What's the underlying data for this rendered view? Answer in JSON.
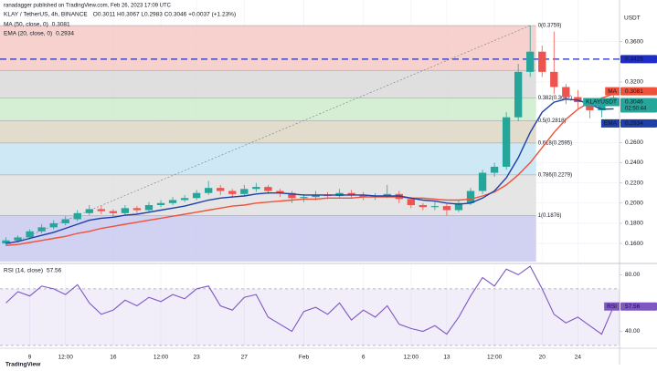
{
  "chart_data": {
    "type": "candlestick",
    "publisher": "ranadagger published on TradingView.com, Feb 26, 2023 17:09 UTC",
    "title": "KLAY / TetherUS, 4h, BINANCE",
    "ohlc_legend": "O0.3011 H0.3067 L0.2983 C0.3046 +0.0037 (+1.23%)",
    "currency": "USDT",
    "grid": true,
    "up_color": "#26a69a",
    "down_color": "#ef5350",
    "categories": [
      null,
      null,
      "9",
      null,
      null,
      "12:00",
      null,
      null,
      null,
      "16",
      null,
      null,
      null,
      "12:00",
      null,
      null,
      "23",
      null,
      null,
      null,
      "27",
      null,
      null,
      null,
      null,
      "Feb",
      null,
      null,
      null,
      null,
      "6",
      null,
      null,
      null,
      "12:00",
      null,
      null,
      "13",
      null,
      null,
      null,
      "12:00",
      null,
      null,
      null,
      "20",
      null,
      null,
      "24",
      null,
      null,
      null
    ],
    "open": [
      0.16,
      0.163,
      0.166,
      0.172,
      0.176,
      0.18,
      0.184,
      0.19,
      0.194,
      0.192,
      0.19,
      0.195,
      0.193,
      0.198,
      0.2,
      0.203,
      0.205,
      0.21,
      0.215,
      0.212,
      0.209,
      0.214,
      0.216,
      0.212,
      0.21,
      0.205,
      0.206,
      0.208,
      0.207,
      0.21,
      0.208,
      0.206,
      0.207,
      0.209,
      0.204,
      0.198,
      0.196,
      0.197,
      0.193,
      0.2,
      0.212,
      0.23,
      0.236,
      0.285,
      0.33,
      0.35,
      0.33,
      0.315,
      0.305,
      0.3,
      0.292,
      0.3011
    ],
    "high": [
      0.166,
      0.168,
      0.174,
      0.179,
      0.183,
      0.187,
      0.193,
      0.198,
      0.197,
      0.194,
      0.198,
      0.197,
      0.201,
      0.203,
      0.206,
      0.208,
      0.213,
      0.222,
      0.218,
      0.214,
      0.218,
      0.22,
      0.218,
      0.214,
      0.212,
      0.209,
      0.212,
      0.211,
      0.214,
      0.213,
      0.211,
      0.21,
      0.218,
      0.212,
      0.206,
      0.2,
      0.201,
      0.199,
      0.203,
      0.215,
      0.233,
      0.24,
      0.29,
      0.338,
      0.3759,
      0.356,
      0.37,
      0.318,
      0.312,
      0.304,
      0.305,
      0.3067
    ],
    "low": [
      0.158,
      0.161,
      0.164,
      0.17,
      0.174,
      0.178,
      0.182,
      0.188,
      0.189,
      0.186,
      0.188,
      0.19,
      0.191,
      0.196,
      0.198,
      0.201,
      0.203,
      0.208,
      0.208,
      0.205,
      0.207,
      0.211,
      0.209,
      0.206,
      0.2,
      0.201,
      0.203,
      0.204,
      0.205,
      0.205,
      0.203,
      0.203,
      0.205,
      0.2,
      0.195,
      0.193,
      0.193,
      0.1876,
      0.191,
      0.198,
      0.209,
      0.226,
      0.233,
      0.281,
      0.325,
      0.325,
      0.308,
      0.298,
      0.294,
      0.284,
      0.285,
      0.2983
    ],
    "close": [
      0.163,
      0.166,
      0.172,
      0.176,
      0.18,
      0.184,
      0.19,
      0.194,
      0.192,
      0.19,
      0.195,
      0.193,
      0.198,
      0.2,
      0.203,
      0.205,
      0.21,
      0.215,
      0.212,
      0.209,
      0.214,
      0.216,
      0.212,
      0.21,
      0.205,
      0.206,
      0.208,
      0.207,
      0.21,
      0.208,
      0.206,
      0.207,
      0.209,
      0.204,
      0.198,
      0.196,
      0.197,
      0.193,
      0.2,
      0.212,
      0.23,
      0.236,
      0.285,
      0.33,
      0.35,
      0.33,
      0.315,
      0.305,
      0.3,
      0.292,
      0.3011,
      0.3046
    ],
    "ylim": [
      0.142,
      0.394
    ],
    "yticks": [
      {
        "value": 0.16,
        "label": "0.1600"
      },
      {
        "value": 0.18,
        "label": "0.1800"
      },
      {
        "value": 0.2,
        "label": "0.2000"
      },
      {
        "value": 0.22,
        "label": "0.2200"
      },
      {
        "value": 0.24,
        "label": "0.2400"
      },
      {
        "value": 0.26,
        "label": "0.2600"
      },
      {
        "value": 0.28,
        "label": "0.2800"
      },
      {
        "value": 0.32,
        "label": "0.3200"
      },
      {
        "value": 0.36,
        "label": "0.3600"
      }
    ],
    "series": [
      {
        "name": "MA (50, close, 0)",
        "tag": "MA",
        "value_label": "0.3081",
        "color": "#f0513a",
        "values": [
          0.158,
          0.159,
          0.161,
          0.163,
          0.165,
          0.167,
          0.17,
          0.172,
          0.175,
          0.177,
          0.179,
          0.181,
          0.183,
          0.185,
          0.187,
          0.189,
          0.191,
          0.193,
          0.195,
          0.197,
          0.198,
          0.2,
          0.201,
          0.202,
          0.203,
          0.204,
          0.204,
          0.205,
          0.205,
          0.205,
          0.206,
          0.206,
          0.206,
          0.206,
          0.205,
          0.205,
          0.204,
          0.203,
          0.203,
          0.204,
          0.207,
          0.211,
          0.218,
          0.228,
          0.24,
          0.255,
          0.27,
          0.283,
          0.293,
          0.3,
          0.304,
          0.3081
        ]
      },
      {
        "name": "EMA (20, close, 0)",
        "tag": "EMA",
        "value_label": "0.2934",
        "color": "#1e3fa8",
        "values": [
          0.16,
          0.162,
          0.165,
          0.168,
          0.171,
          0.175,
          0.179,
          0.183,
          0.185,
          0.186,
          0.188,
          0.189,
          0.191,
          0.193,
          0.195,
          0.197,
          0.2,
          0.203,
          0.205,
          0.206,
          0.207,
          0.209,
          0.21,
          0.21,
          0.209,
          0.208,
          0.208,
          0.208,
          0.208,
          0.208,
          0.208,
          0.207,
          0.207,
          0.207,
          0.205,
          0.203,
          0.202,
          0.2,
          0.199,
          0.2,
          0.205,
          0.212,
          0.225,
          0.245,
          0.27,
          0.29,
          0.3,
          0.303,
          0.302,
          0.298,
          0.293,
          0.2934
        ]
      }
    ],
    "price_line": {
      "value": 0.3426,
      "label": "0.3426",
      "color": "#1e2cc8"
    },
    "last_price": {
      "name": "KLAYUSDT",
      "value": 0.3046,
      "label": "0.3046",
      "countdown": "02:50:44",
      "color": "#26a69a"
    },
    "fib": {
      "levels": [
        {
          "price": 0.3759,
          "label": "0(0.3759)",
          "color": "#f4c9c6"
        },
        {
          "price": 0.3315,
          "color": "#d9d9d9"
        },
        {
          "price": 0.3042,
          "label": "0.382(0.3042)",
          "color": "#cdeccb"
        },
        {
          "price": 0.2818,
          "label": "0.5(0.2818)",
          "color": "#ddd6c4"
        },
        {
          "price": 0.2595,
          "label": "0.618(0.2595)",
          "color": "#c6e4f3"
        },
        {
          "price": 0.2279,
          "label": "0.786(0.2279)",
          "color": "#e0e0e0"
        },
        {
          "price": 0.1876,
          "label": "1(0.1876)",
          "color": "#c9c9f0"
        }
      ]
    },
    "rsi": {
      "title": "RSI (14, close)",
      "tag": "RSI",
      "value_label": "57.56",
      "color": "#7e57c2",
      "values": [
        60,
        68,
        65,
        72,
        70,
        66,
        73,
        60,
        52,
        55,
        62,
        58,
        64,
        61,
        66,
        63,
        70,
        72,
        58,
        55,
        64,
        66,
        50,
        45,
        40,
        54,
        57,
        52,
        60,
        48,
        55,
        50,
        58,
        45,
        42,
        40,
        44,
        38,
        50,
        65,
        78,
        72,
        84,
        80,
        86,
        70,
        52,
        46,
        50,
        44,
        38,
        57.56
      ],
      "ylim": [
        28.7,
        86.7
      ],
      "yticks": [
        {
          "value": 40,
          "label": "40.00"
        },
        {
          "value": 80,
          "label": "80.00"
        }
      ],
      "band": [
        30,
        70
      ]
    },
    "watermark": "TradingView"
  }
}
